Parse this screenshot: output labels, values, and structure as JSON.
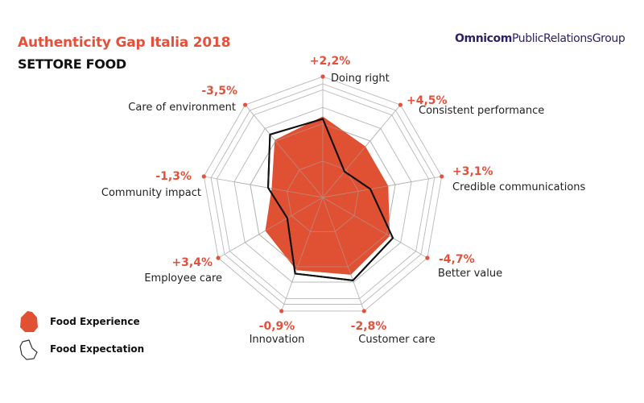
{
  "header": {
    "title": "Authenticity Gap Italia 2018",
    "subtitle": "SETTORE FOOD",
    "brand_bold": "Omnicom",
    "brand_regular": "PublicRelationsGroup"
  },
  "colors": {
    "accent": "#e4503a",
    "experience_fill": "#e05033",
    "expectation_line": "#111111",
    "grid": "#b8b8b8",
    "brand": "#2a2366"
  },
  "chart_data": {
    "type": "radar",
    "title": "Authenticity Gap Italia 2018",
    "subtitle": "SETTORE FOOD",
    "categories": [
      "Doing right",
      "Consistent performance",
      "Credible communications",
      "Better value",
      "Customer care",
      "Innovation",
      "Employee care",
      "Community impact",
      "Care of environment"
    ],
    "gap_labels": [
      "+2,2%",
      "+4,5%",
      "+3,1%",
      "-4,7%",
      "-2,8%",
      "-0,9%",
      "+3,4%",
      "-1,3%",
      "-3,5%"
    ],
    "rmax": 1.0,
    "grid_levels": [
      0.3,
      0.61,
      0.745,
      0.89,
      0.94,
      1.0
    ],
    "series": [
      {
        "name": "Food Experience",
        "style": "filled",
        "values": [
          0.67,
          0.55,
          0.55,
          0.64,
          0.68,
          0.64,
          0.55,
          0.43,
          0.62
        ]
      },
      {
        "name": "Food Expectation",
        "style": "outline",
        "values": [
          0.65,
          0.28,
          0.4,
          0.67,
          0.73,
          0.67,
          0.34,
          0.46,
          0.68
        ]
      }
    ],
    "legend": {
      "position": "bottom-left",
      "entries": [
        "Food Experience",
        "Food Expectation"
      ]
    }
  }
}
